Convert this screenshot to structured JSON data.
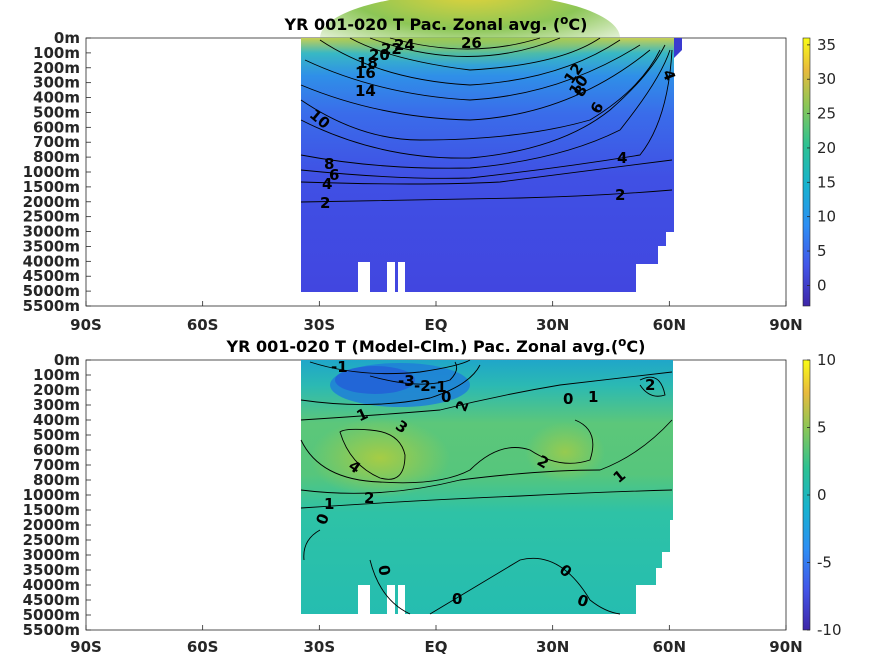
{
  "colors": {
    "cold": "#3f3fd7",
    "blue": "#2f6fde",
    "teal": "#1fb3b5",
    "green": "#5cc96a",
    "yellow": "#e8d84a"
  },
  "chart_data": [
    {
      "type": "heatmap",
      "title": "YR 001-020 T Pac. Zonal avg. (°C)",
      "x_ticks": [
        "90S",
        "60S",
        "30S",
        "EQ",
        "30N",
        "60N",
        "90N"
      ],
      "x_values": [
        -90,
        -60,
        -30,
        0,
        30,
        60,
        90
      ],
      "y_ticks": [
        "0m",
        "100m",
        "200m",
        "300m",
        "400m",
        "500m",
        "600m",
        "700m",
        "800m",
        "1000m",
        "1500m",
        "2000m",
        "2500m",
        "3000m",
        "3500m",
        "4000m",
        "4500m",
        "5000m",
        "5500m"
      ],
      "data_extent": {
        "lat_min": -35,
        "lat_max": 62
      },
      "colorbar": {
        "range": [
          -3,
          36
        ],
        "ticks": [
          "35",
          "30",
          "25",
          "20",
          "15",
          "10",
          "5",
          "0"
        ]
      },
      "contour_labels": [
        "26",
        "24",
        "22",
        "20",
        "18",
        "16",
        "14",
        "12",
        "10",
        "10",
        "8",
        "8",
        "6",
        "6",
        "4",
        "4",
        "4",
        "2",
        "2"
      ],
      "grid": false
    },
    {
      "type": "heatmap",
      "title": "YR 001-020 T (Model-Clm.) Pac. Zonal avg.(°C)",
      "x_ticks": [
        "90S",
        "60S",
        "30S",
        "EQ",
        "30N",
        "60N",
        "90N"
      ],
      "x_values": [
        -90,
        -60,
        -30,
        0,
        30,
        60,
        90
      ],
      "y_ticks": [
        "0m",
        "100m",
        "200m",
        "300m",
        "400m",
        "500m",
        "600m",
        "700m",
        "800m",
        "1000m",
        "1500m",
        "2000m",
        "2500m",
        "3000m",
        "3500m",
        "4000m",
        "4500m",
        "5000m",
        "5500m"
      ],
      "data_extent": {
        "lat_min": -35,
        "lat_max": 62
      },
      "colorbar": {
        "range": [
          -10,
          10
        ],
        "ticks": [
          "10",
          "5",
          "0",
          "-5",
          "-10"
        ]
      },
      "contour_labels": [
        "-1",
        "-3",
        "-2",
        "-1",
        "0",
        "1",
        "2",
        "0",
        "1",
        "2",
        "3",
        "4",
        "2",
        "1",
        "1",
        "2",
        "0",
        "0",
        "0",
        "0",
        "0"
      ],
      "grid": false
    }
  ]
}
